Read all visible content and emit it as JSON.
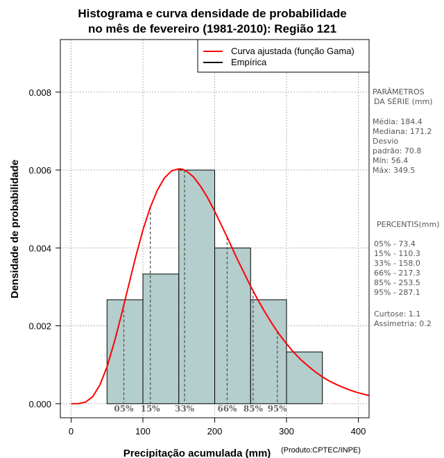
{
  "chart_data": {
    "type": "bar",
    "title_lines": [
      "Histograma e curva densidade de probabilidade",
      "no mês de fevereiro (1981-2010): Região 121"
    ],
    "xlabel": "Precipitação acumulada (mm)",
    "ylabel": "Densidade de probabilidade",
    "credit": "(Produto:CPTEC/INPE)",
    "xlim": [
      -15,
      415
    ],
    "ylim": [
      -0.00036,
      0.00935
    ],
    "x_ticks": [
      0,
      100,
      200,
      300,
      400
    ],
    "x_tick_labels": [
      "0",
      "100",
      "200",
      "300",
      "400"
    ],
    "y_ticks": [
      0.0,
      0.002,
      0.004,
      0.006,
      0.008
    ],
    "y_tick_labels": [
      "0.000",
      "0.002",
      "0.004",
      "0.006",
      "0.008"
    ],
    "grid": true,
    "histogram": {
      "name": "Empírica",
      "bin_edges": [
        50,
        100,
        150,
        200,
        250,
        300,
        350
      ],
      "densities": [
        0.00267,
        0.00333,
        0.006,
        0.004,
        0.00267,
        0.00133
      ],
      "color": "#b4cdcd"
    },
    "curve": {
      "name": "Curva ajustada (função Gama)",
      "color": "#ff0000",
      "x": [
        0,
        10,
        20,
        30,
        40,
        50,
        60,
        70,
        80,
        90,
        100,
        110,
        120,
        130,
        140,
        150,
        155,
        160,
        165,
        170,
        180,
        190,
        200,
        210,
        220,
        230,
        240,
        250,
        260,
        270,
        280,
        290,
        300,
        310,
        320,
        330,
        340,
        350,
        360,
        370,
        380,
        390,
        400,
        415
      ],
      "y": [
        0.0,
        3e-06,
        4e-05,
        0.00018,
        0.00048,
        0.00095,
        0.00157,
        0.00228,
        0.00303,
        0.00378,
        0.00446,
        0.00503,
        0.00548,
        0.0058,
        0.00598,
        0.00603,
        0.00602,
        0.00598,
        0.00591,
        0.00583,
        0.00559,
        0.00529,
        0.00494,
        0.00456,
        0.00417,
        0.00377,
        0.00339,
        0.00302,
        0.00267,
        0.00235,
        0.00205,
        0.00178,
        0.00154,
        0.00132,
        0.00113,
        0.00097,
        0.00082,
        0.00069,
        0.00058,
        0.00049,
        0.00041,
        0.00034,
        0.00028,
        0.00021
      ]
    },
    "percentile_markers": [
      {
        "label": "05%",
        "x": 73.4
      },
      {
        "label": "15%",
        "x": 110.3
      },
      {
        "label": "33%",
        "x": 158.0
      },
      {
        "label": "66%",
        "x": 217.3
      },
      {
        "label": "85%",
        "x": 253.5
      },
      {
        "label": "95%",
        "x": 287.1
      }
    ],
    "legend": {
      "position": "top-right",
      "entries": [
        {
          "label": "Curva ajustada (função Gama)",
          "color": "#ff0000"
        },
        {
          "label": "Empírica",
          "color": "#000000"
        }
      ]
    }
  },
  "stats_panel": {
    "params_title_lines": [
      "PARÂMETROS",
      "DA SÉRIE (mm)"
    ],
    "params_lines": [
      "Média:  184.4",
      "Mediana:  171.2",
      "Desvio",
      "padrão:  70.8",
      "Mín:  56.4",
      "Máx:  349.5"
    ],
    "percentis_title": "PERCENTIS(mm)",
    "percentis_lines": [
      "05% -  73.4",
      "15% -  110.3",
      "33% -  158.0",
      "66% -  217.3",
      "85% -  253.5",
      "95% -  287.1"
    ],
    "extra_lines": [
      "Curtose:  1.1",
      "Assimetria:  0.2"
    ]
  }
}
